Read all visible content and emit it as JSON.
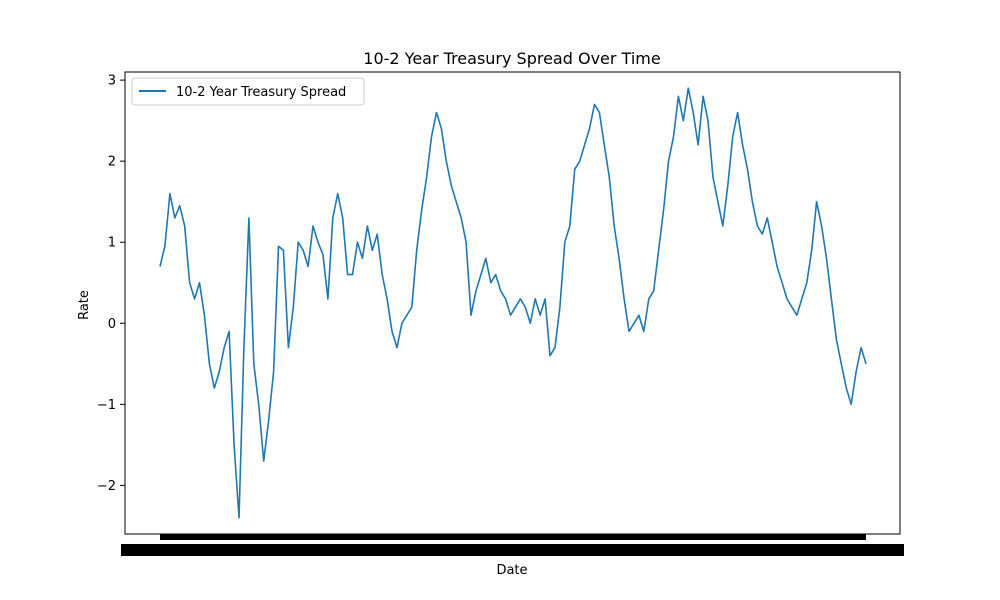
{
  "chart_data": {
    "type": "line",
    "title": "10-2 Year Treasury Spread Over Time",
    "xlabel": "Date",
    "ylabel": "Rate",
    "ylim": [
      -2.6,
      3.1
    ],
    "y_ticks": [
      3,
      2,
      1,
      0,
      -1,
      -2
    ],
    "y_tick_labels": [
      "3",
      "2",
      "1",
      "0",
      "−1",
      "−2"
    ],
    "grid": false,
    "legend_position": "top-left",
    "x_tick_labels_note": "thousands of overlapping date labels render as a solid black band",
    "series": [
      {
        "name": "10-2 Year Treasury Spread",
        "color": "#1f77b4",
        "values": [
          0.7,
          0.95,
          1.6,
          1.3,
          1.45,
          1.2,
          0.5,
          0.3,
          0.5,
          0.1,
          -0.5,
          -0.8,
          -0.6,
          -0.3,
          -0.1,
          -1.5,
          -2.4,
          -0.3,
          1.3,
          -0.5,
          -1.0,
          -1.7,
          -1.2,
          -0.6,
          0.95,
          0.9,
          -0.3,
          0.2,
          1.0,
          0.9,
          0.7,
          1.2,
          1.0,
          0.85,
          0.3,
          1.3,
          1.6,
          1.3,
          0.6,
          0.6,
          1.0,
          0.8,
          1.2,
          0.9,
          1.1,
          0.6,
          0.3,
          -0.1,
          -0.3,
          0.0,
          0.1,
          0.2,
          0.9,
          1.4,
          1.8,
          2.3,
          2.6,
          2.4,
          2.0,
          1.7,
          1.5,
          1.3,
          1.0,
          0.1,
          0.4,
          0.6,
          0.8,
          0.5,
          0.6,
          0.4,
          0.3,
          0.1,
          0.2,
          0.3,
          0.2,
          0.0,
          0.3,
          0.1,
          0.3,
          -0.4,
          -0.3,
          0.2,
          1.0,
          1.2,
          1.9,
          2.0,
          2.2,
          2.4,
          2.7,
          2.6,
          2.2,
          1.8,
          1.2,
          0.8,
          0.3,
          -0.1,
          0.0,
          0.1,
          -0.1,
          0.3,
          0.4,
          0.9,
          1.4,
          2.0,
          2.3,
          2.8,
          2.5,
          2.9,
          2.6,
          2.2,
          2.8,
          2.5,
          1.8,
          1.5,
          1.2,
          1.7,
          2.3,
          2.6,
          2.2,
          1.9,
          1.5,
          1.2,
          1.1,
          1.3,
          1.0,
          0.7,
          0.5,
          0.3,
          0.2,
          0.1,
          0.3,
          0.5,
          0.9,
          1.5,
          1.2,
          0.8,
          0.3,
          -0.2,
          -0.5,
          -0.8,
          -1.0,
          -0.6,
          -0.3,
          -0.5
        ]
      }
    ]
  }
}
